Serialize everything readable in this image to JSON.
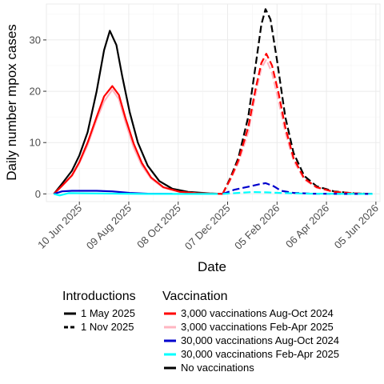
{
  "chart_data": {
    "type": "line",
    "xlabel": "Date",
    "ylabel": "Daily number mpox cases",
    "x_ticks": [
      "10 Jun 2025",
      "09 Aug 2025",
      "08 Oct 2025",
      "07 Dec 2025",
      "05 Feb 2026",
      "06 Apr 2026",
      "05 Jun 2026"
    ],
    "y_ticks": [
      0,
      10,
      20,
      30
    ],
    "xlim": [
      "2025-05-01",
      "2026-06-10"
    ],
    "ylim": [
      -1.5,
      37
    ],
    "grid": true,
    "legend_placement": "bottom",
    "legend_introductions": {
      "title": "Introductions",
      "items": [
        {
          "label": "1 May 2025",
          "linetype": "solid"
        },
        {
          "label": "1 Nov 2025",
          "linetype": "dashed"
        }
      ]
    },
    "legend_vaccination": {
      "title": "Vaccination",
      "items": [
        {
          "label": "3,000 vaccinations Aug-Oct 2024",
          "color": "#ff0000"
        },
        {
          "label": "3,000 vaccinations Feb-Apr 2025",
          "color": "#ffb6c1"
        },
        {
          "label": "30,000 vaccinations Aug-Oct 2024",
          "color": "#0000cd"
        },
        {
          "label": "30,000 vaccinations Feb-Apr 2025",
          "color": "#00ffff"
        },
        {
          "label": "No vaccinations",
          "color": "#000000"
        }
      ]
    },
    "series": [
      {
        "vaccination": "No vaccinations",
        "introduction": "1 May 2025",
        "color": "#000000",
        "linetype": "solid",
        "points": [
          [
            "2025-05-10",
            0
          ],
          [
            "2025-05-20",
            2
          ],
          [
            "2025-06-01",
            4.5
          ],
          [
            "2025-06-10",
            7.5
          ],
          [
            "2025-06-20",
            12
          ],
          [
            "2025-07-01",
            20
          ],
          [
            "2025-07-10",
            28
          ],
          [
            "2025-07-17",
            31.8
          ],
          [
            "2025-07-25",
            29
          ],
          [
            "2025-08-01",
            23
          ],
          [
            "2025-08-10",
            16
          ],
          [
            "2025-08-20",
            10
          ],
          [
            "2025-09-01",
            5.5
          ],
          [
            "2025-09-15",
            2.5
          ],
          [
            "2025-10-01",
            1
          ],
          [
            "2025-10-20",
            0.4
          ],
          [
            "2025-11-15",
            0.1
          ],
          [
            "2025-12-01",
            0
          ]
        ]
      },
      {
        "vaccination": "3,000 vaccinations Feb-Apr 2025",
        "introduction": "1 May 2025",
        "color": "#ffb6c1",
        "linetype": "solid",
        "points": [
          [
            "2025-05-10",
            0
          ],
          [
            "2025-05-20",
            1.5
          ],
          [
            "2025-06-01",
            3.5
          ],
          [
            "2025-06-10",
            6
          ],
          [
            "2025-06-20",
            9.5
          ],
          [
            "2025-07-01",
            14.5
          ],
          [
            "2025-07-10",
            18
          ],
          [
            "2025-07-20",
            20.3
          ],
          [
            "2025-07-28",
            18.5
          ],
          [
            "2025-08-05",
            14
          ],
          [
            "2025-08-15",
            9
          ],
          [
            "2025-08-25",
            5.5
          ],
          [
            "2025-09-05",
            3
          ],
          [
            "2025-09-20",
            1.2
          ],
          [
            "2025-10-10",
            0.4
          ],
          [
            "2025-11-01",
            0.1
          ],
          [
            "2025-12-01",
            0
          ]
        ]
      },
      {
        "vaccination": "3,000 vaccinations Aug-Oct 2024",
        "introduction": "1 May 2025",
        "color": "#ff0000",
        "linetype": "solid",
        "points": [
          [
            "2025-05-10",
            0
          ],
          [
            "2025-05-20",
            1.6
          ],
          [
            "2025-06-01",
            3.6
          ],
          [
            "2025-06-10",
            6.2
          ],
          [
            "2025-06-20",
            10
          ],
          [
            "2025-07-01",
            15
          ],
          [
            "2025-07-10",
            19
          ],
          [
            "2025-07-20",
            21
          ],
          [
            "2025-07-28",
            19.3
          ],
          [
            "2025-08-05",
            14.8
          ],
          [
            "2025-08-15",
            9.8
          ],
          [
            "2025-08-25",
            6
          ],
          [
            "2025-09-05",
            3.2
          ],
          [
            "2025-09-20",
            1.3
          ],
          [
            "2025-10-10",
            0.4
          ],
          [
            "2025-11-01",
            0.1
          ],
          [
            "2025-12-01",
            0
          ]
        ]
      },
      {
        "vaccination": "30,000 vaccinations Aug-Oct 2024",
        "introduction": "1 May 2025",
        "color": "#0000cd",
        "linetype": "solid",
        "points": [
          [
            "2025-05-10",
            0
          ],
          [
            "2025-05-20",
            0.5
          ],
          [
            "2025-06-01",
            0.6
          ],
          [
            "2025-07-01",
            0.6
          ],
          [
            "2025-07-20",
            0.5
          ],
          [
            "2025-08-10",
            0.2
          ],
          [
            "2025-09-01",
            0.05
          ],
          [
            "2025-10-01",
            0
          ]
        ]
      },
      {
        "vaccination": "30,000 vaccinations Feb-Apr 2025",
        "introduction": "1 May 2025",
        "color": "#00ffff",
        "linetype": "solid",
        "points": [
          [
            "2025-05-10",
            0
          ],
          [
            "2025-05-17",
            -0.3
          ],
          [
            "2025-05-28",
            0.15
          ],
          [
            "2025-06-20",
            0.1
          ],
          [
            "2025-08-01",
            0.05
          ],
          [
            "2025-09-01",
            0
          ],
          [
            "2025-11-25",
            0
          ]
        ]
      },
      {
        "vaccination": "No vaccinations",
        "introduction": "1 Nov 2025",
        "color": "#000000",
        "linetype": "dashed",
        "points": [
          [
            "2025-12-01",
            0
          ],
          [
            "2025-12-10",
            3
          ],
          [
            "2025-12-20",
            7
          ],
          [
            "2026-01-01",
            15
          ],
          [
            "2026-01-10",
            25
          ],
          [
            "2026-01-17",
            33
          ],
          [
            "2026-01-22",
            36
          ],
          [
            "2026-01-28",
            34
          ],
          [
            "2026-02-05",
            26
          ],
          [
            "2026-02-15",
            15
          ],
          [
            "2026-02-25",
            8
          ],
          [
            "2026-03-10",
            3.5
          ],
          [
            "2026-03-25",
            1.5
          ],
          [
            "2026-04-15",
            0.5
          ],
          [
            "2026-05-10",
            0.1
          ],
          [
            "2026-06-01",
            0
          ]
        ]
      },
      {
        "vaccination": "3,000 vaccinations Feb-Apr 2025",
        "introduction": "1 Nov 2025",
        "color": "#ffb6c1",
        "linetype": "dashed",
        "points": [
          [
            "2025-12-01",
            0
          ],
          [
            "2025-12-10",
            2.6
          ],
          [
            "2025-12-20",
            6
          ],
          [
            "2026-01-01",
            12
          ],
          [
            "2026-01-10",
            19.5
          ],
          [
            "2026-01-17",
            24.5
          ],
          [
            "2026-01-23",
            26.2
          ],
          [
            "2026-01-30",
            23.5
          ],
          [
            "2026-02-07",
            18
          ],
          [
            "2026-02-15",
            12
          ],
          [
            "2026-02-25",
            6.5
          ],
          [
            "2026-03-10",
            2.8
          ],
          [
            "2026-03-25",
            1.2
          ],
          [
            "2026-04-15",
            0.4
          ],
          [
            "2026-05-10",
            0.1
          ],
          [
            "2026-06-01",
            0
          ]
        ]
      },
      {
        "vaccination": "3,000 vaccinations Aug-Oct 2024",
        "introduction": "1 Nov 2025",
        "color": "#ff0000",
        "linetype": "dashed",
        "points": [
          [
            "2025-12-01",
            0
          ],
          [
            "2025-12-10",
            2.8
          ],
          [
            "2025-12-20",
            6.5
          ],
          [
            "2026-01-01",
            13
          ],
          [
            "2026-01-10",
            20.5
          ],
          [
            "2026-01-17",
            25.5
          ],
          [
            "2026-01-23",
            27.3
          ],
          [
            "2026-01-30",
            25
          ],
          [
            "2026-02-07",
            19.5
          ],
          [
            "2026-02-15",
            13
          ],
          [
            "2026-02-25",
            7
          ],
          [
            "2026-03-10",
            3
          ],
          [
            "2026-03-25",
            1.3
          ],
          [
            "2026-04-15",
            0.4
          ],
          [
            "2026-05-10",
            0.1
          ],
          [
            "2026-06-01",
            0
          ]
        ]
      },
      {
        "vaccination": "30,000 vaccinations Aug-Oct 2024",
        "introduction": "1 Nov 2025",
        "color": "#0000cd",
        "linetype": "dashed",
        "points": [
          [
            "2025-12-01",
            0
          ],
          [
            "2025-12-15",
            0.8
          ],
          [
            "2026-01-01",
            1.4
          ],
          [
            "2026-01-15",
            1.9
          ],
          [
            "2026-01-22",
            2.1
          ],
          [
            "2026-02-01",
            1.5
          ],
          [
            "2026-02-10",
            0.6
          ],
          [
            "2026-02-25",
            0.2
          ],
          [
            "2026-03-20",
            0.05
          ],
          [
            "2026-05-01",
            0
          ],
          [
            "2026-06-01",
            0
          ]
        ]
      },
      {
        "vaccination": "30,000 vaccinations Feb-Apr 2025",
        "introduction": "1 Nov 2025",
        "color": "#00ffff",
        "linetype": "dashed",
        "points": [
          [
            "2025-12-01",
            0
          ],
          [
            "2025-12-20",
            0.2
          ],
          [
            "2026-01-05",
            0.35
          ],
          [
            "2026-01-25",
            0.3
          ],
          [
            "2026-02-15",
            0.15
          ],
          [
            "2026-03-15",
            0.05
          ],
          [
            "2026-06-01",
            0
          ]
        ]
      }
    ]
  }
}
